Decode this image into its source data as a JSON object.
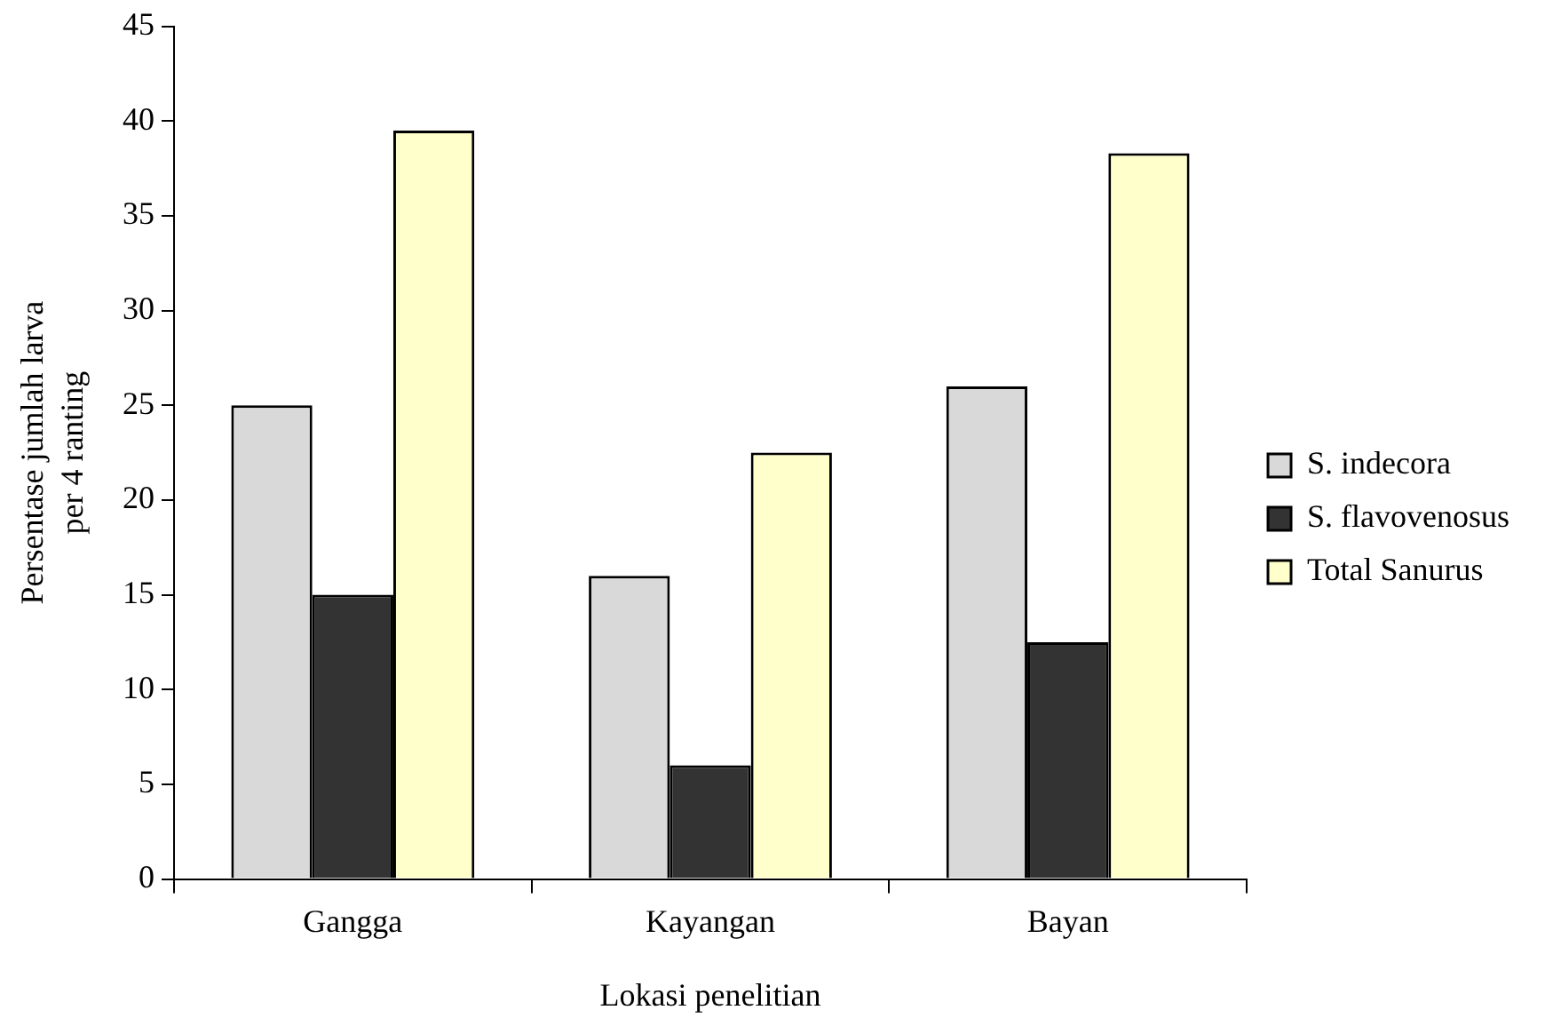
{
  "chart_data": {
    "type": "bar",
    "xlabel": "Lokasi penelitian",
    "ylabel": "Persentase jumlah larva\nper 4 ranting",
    "categories": [
      "Gangga",
      "Kayangan",
      "Bayan"
    ],
    "series": [
      {
        "name": "S. indecora",
        "color": "#d9d9d9",
        "values": [
          25,
          16,
          26
        ]
      },
      {
        "name": "S. flavovenosus",
        "color": "#333333",
        "values": [
          15,
          6,
          12.5
        ]
      },
      {
        "name": "Total Sanurus",
        "color": "#ffffcc",
        "values": [
          39.5,
          22.5,
          38.3
        ]
      }
    ],
    "ylim": [
      0,
      45
    ],
    "yticks": [
      0,
      5,
      10,
      15,
      20,
      25,
      30,
      35,
      40,
      45
    ],
    "grid": false,
    "legend": "right"
  }
}
